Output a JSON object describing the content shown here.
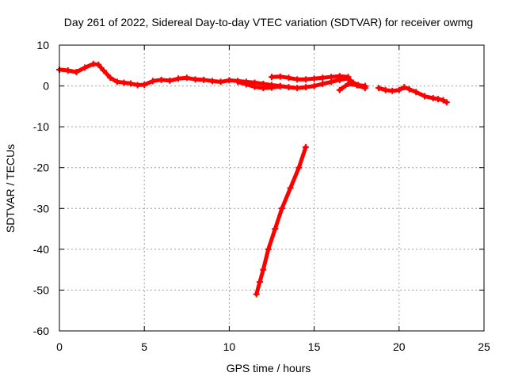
{
  "chart_data": {
    "type": "scatter",
    "title": "Day 261 of 2022, Sidereal Day-to-day VTEC variation (SDTVAR) for receiver owmg",
    "xlabel": "GPS time / hours",
    "ylabel": "SDTVAR / TECUs",
    "xlim": [
      0,
      25
    ],
    "ylim": [
      -60,
      10
    ],
    "xticks": [
      0,
      5,
      10,
      15,
      20,
      25
    ],
    "yticks": [
      -60,
      -50,
      -40,
      -30,
      -20,
      -10,
      0,
      10
    ],
    "grid": true,
    "series_color": "#ff0000",
    "series": [
      {
        "name": "main-trace",
        "points": [
          [
            0.0,
            4.0
          ],
          [
            0.5,
            3.8
          ],
          [
            1.0,
            3.4
          ],
          [
            1.5,
            4.5
          ],
          [
            2.0,
            5.4
          ],
          [
            2.3,
            5.2
          ],
          [
            2.6,
            3.8
          ],
          [
            3.0,
            2.0
          ],
          [
            3.4,
            1.0
          ],
          [
            3.8,
            0.8
          ],
          [
            4.2,
            0.6
          ],
          [
            4.6,
            0.2
          ],
          [
            5.0,
            0.3
          ],
          [
            5.5,
            1.2
          ],
          [
            6.0,
            1.5
          ],
          [
            6.5,
            1.3
          ],
          [
            7.0,
            1.8
          ],
          [
            7.5,
            2.0
          ],
          [
            8.0,
            1.6
          ],
          [
            8.5,
            1.5
          ],
          [
            9.0,
            1.2
          ],
          [
            9.5,
            1.0
          ],
          [
            10.0,
            1.4
          ],
          [
            10.5,
            1.2
          ],
          [
            11.0,
            1.0
          ],
          [
            11.5,
            0.8
          ],
          [
            12.0,
            0.5
          ],
          [
            12.5,
            0.2
          ],
          [
            13.0,
            0.0
          ],
          [
            13.5,
            -0.3
          ],
          [
            14.0,
            -0.5
          ],
          [
            14.5,
            -0.3
          ],
          [
            15.0,
            0.0
          ],
          [
            15.5,
            0.5
          ],
          [
            16.0,
            1.0
          ],
          [
            16.5,
            1.5
          ],
          [
            17.0,
            1.8
          ],
          [
            17.3,
            0.8
          ],
          [
            17.6,
            0.2
          ],
          [
            18.0,
            0.0
          ]
        ]
      },
      {
        "name": "upper-branch",
        "points": [
          [
            12.5,
            2.2
          ],
          [
            13.0,
            2.3
          ],
          [
            13.5,
            2.0
          ],
          [
            14.0,
            1.6
          ],
          [
            14.5,
            1.6
          ],
          [
            15.0,
            1.8
          ],
          [
            15.5,
            2.0
          ],
          [
            16.0,
            2.2
          ],
          [
            16.5,
            2.4
          ],
          [
            17.0,
            2.2
          ]
        ]
      },
      {
        "name": "lower-branch",
        "points": [
          [
            10.5,
            1.0
          ],
          [
            11.0,
            0.4
          ],
          [
            11.5,
            -0.2
          ],
          [
            12.0,
            -0.5
          ],
          [
            12.5,
            -0.4
          ],
          [
            13.0,
            -0.1
          ]
        ]
      },
      {
        "name": "late-trace",
        "points": [
          [
            16.5,
            -1.0
          ],
          [
            17.0,
            0.5
          ],
          [
            17.5,
            0.2
          ],
          [
            18.0,
            -0.5
          ]
        ]
      },
      {
        "name": "right-trace",
        "points": [
          [
            18.8,
            -0.5
          ],
          [
            19.2,
            -1.0
          ],
          [
            19.6,
            -1.2
          ],
          [
            20.0,
            -1.0
          ],
          [
            20.3,
            -0.3
          ],
          [
            20.6,
            -0.8
          ],
          [
            21.0,
            -1.5
          ],
          [
            21.5,
            -2.5
          ],
          [
            22.0,
            -3.0
          ],
          [
            22.3,
            -3.2
          ],
          [
            22.6,
            -3.5
          ],
          [
            22.8,
            -4.0
          ]
        ]
      },
      {
        "name": "descending-track",
        "points": [
          [
            11.6,
            -51.0
          ],
          [
            11.8,
            -48.0
          ],
          [
            12.0,
            -45.0
          ],
          [
            12.3,
            -40.0
          ],
          [
            12.7,
            -35.0
          ],
          [
            13.1,
            -30.0
          ],
          [
            13.6,
            -25.0
          ],
          [
            14.1,
            -20.0
          ],
          [
            14.5,
            -15.0
          ]
        ]
      }
    ]
  }
}
